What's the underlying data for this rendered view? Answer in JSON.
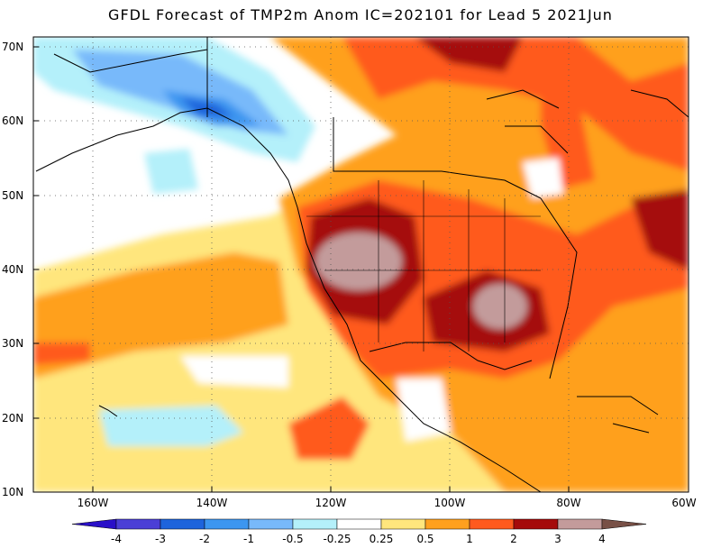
{
  "title": "GFDL Forecast of TMP2m Anom IC=202101 for Lead 5 2021Jun",
  "axes": {
    "lat_labels": [
      "70N",
      "60N",
      "50N",
      "40N",
      "30N",
      "20N",
      "10N"
    ],
    "lon_labels": [
      "160W",
      "140W",
      "120W",
      "100W",
      "80W",
      "60W"
    ]
  },
  "colorbar": {
    "labels": [
      "-4",
      "-3",
      "-2",
      "-1",
      "-0.5",
      "-0.25",
      "0.25",
      "0.5",
      "1",
      "2",
      "3",
      "4"
    ],
    "colors": [
      "#2a10c8",
      "#4b3fd6",
      "#1e64dc",
      "#3c96f0",
      "#78b9fa",
      "#b4f0fa",
      "#ffffff",
      "#ffe67d",
      "#ffa01e",
      "#ff5a1e",
      "#a50a0a",
      "#c39b9b",
      "#785046"
    ]
  }
}
